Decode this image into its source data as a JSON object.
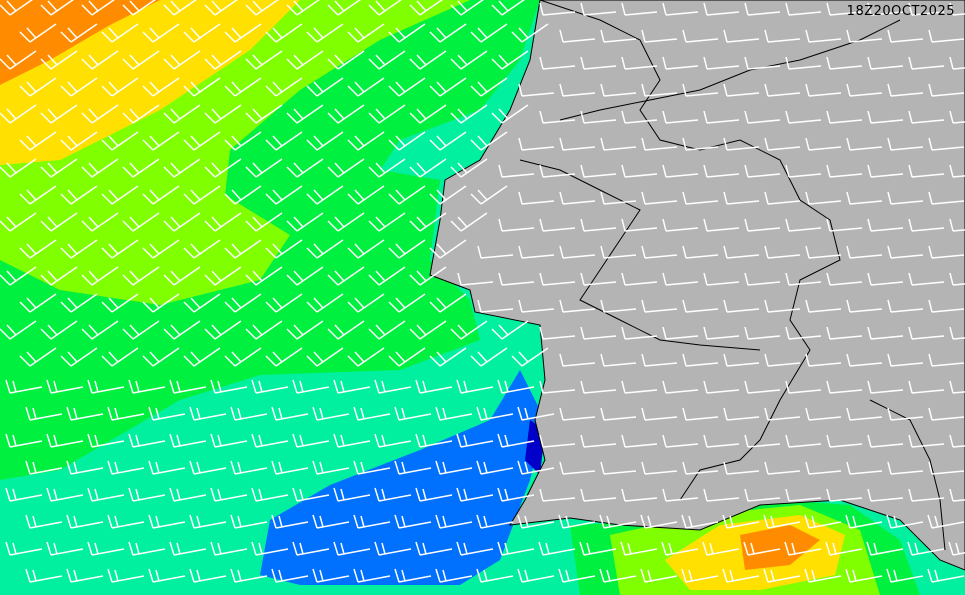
{
  "map": {
    "timestamp": "18Z20OCT2025",
    "colors": {
      "land": "#b4b4b4",
      "wind_very_low": "#0000c8",
      "wind_low": "#0070ff",
      "wind_moderate": "#00f0a0",
      "wind_fresh": "#00f040",
      "wind_strong": "#80ff00",
      "wind_very_strong": "#ffe000",
      "wind_gale": "#ff8c00",
      "barbs": "#ffffff",
      "borders": "#000000"
    }
  }
}
